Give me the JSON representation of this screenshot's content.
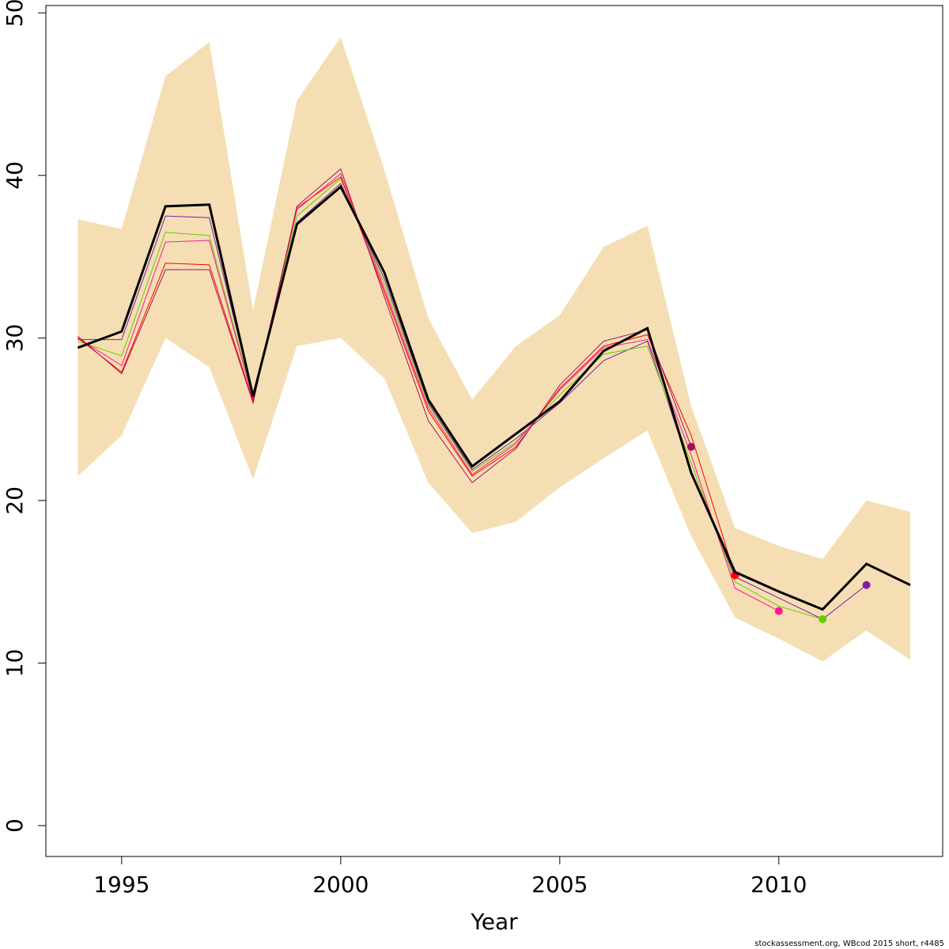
{
  "chart_data": {
    "type": "line",
    "x_label": "Year",
    "footnote": "stockassessment.org, WBcod 2015 short, r4485",
    "x": [
      1994,
      1995,
      1996,
      1997,
      1998,
      1999,
      2000,
      2001,
      2002,
      2003,
      2004,
      2005,
      2006,
      2007,
      2008,
      2009,
      2010,
      2011,
      2012,
      2013
    ],
    "xlim": [
      1993.27,
      2013.74
    ],
    "xticks": [
      1995,
      2000,
      2005,
      2010
    ],
    "ylim": [
      -1.9,
      50.45
    ],
    "yticks": [
      0,
      10,
      20,
      30,
      40,
      50
    ],
    "band": {
      "color": "#f5deb3",
      "upper": [
        37.3,
        36.7,
        46.1,
        48.2,
        31.7,
        44.6,
        48.5,
        40.3,
        31.2,
        26.2,
        29.5,
        31.4,
        35.6,
        36.9,
        25.8,
        18.3,
        17.2,
        16.4,
        20.0,
        19.3
      ],
      "lower": [
        21.5,
        24.0,
        30.0,
        28.2,
        21.3,
        29.5,
        30.0,
        27.5,
        21.1,
        18.0,
        18.7,
        20.8,
        22.6,
        24.3,
        17.8,
        12.8,
        11.5,
        10.1,
        12.0,
        10.2
      ]
    },
    "series": [
      {
        "color": "#7b1fa2",
        "values": [
          29.9,
          29.9,
          37.5,
          37.4,
          26.4,
          37.1,
          39.5,
          33.6,
          26.0,
          21.9,
          23.8,
          26.0,
          28.6,
          29.8,
          21.8,
          15.3,
          14.0,
          12.7,
          14.8,
          null
        ]
      },
      {
        "color": "#66cc00",
        "values": [
          29.8,
          28.9,
          36.5,
          36.3,
          26.3,
          37.5,
          39.8,
          33.3,
          25.9,
          21.8,
          23.6,
          26.5,
          29.0,
          29.5,
          22.3,
          15.0,
          13.5,
          12.7,
          null,
          null
        ]
      },
      {
        "color": "#ff1493",
        "values": [
          30.0,
          28.3,
          35.9,
          36.0,
          26.2,
          37.9,
          40.1,
          33.0,
          25.7,
          21.6,
          23.5,
          26.8,
          29.4,
          29.9,
          22.8,
          14.6,
          13.2,
          null,
          null,
          null
        ]
      },
      {
        "color": "#ff0000",
        "values": [
          30.0,
          27.9,
          34.6,
          34.5,
          26.1,
          38.0,
          39.9,
          32.8,
          25.5,
          21.5,
          23.3,
          26.9,
          29.5,
          30.2,
          24.0,
          15.4,
          null,
          null,
          null,
          null
        ]
      },
      {
        "color": "#a3105c",
        "values": [
          30.1,
          27.8,
          34.2,
          34.2,
          26.0,
          38.1,
          40.4,
          32.5,
          24.9,
          21.1,
          23.2,
          27.1,
          29.8,
          30.5,
          23.3,
          null,
          null,
          null,
          null,
          null
        ]
      },
      {
        "color": "#000000",
        "values": [
          29.4,
          30.4,
          38.1,
          38.2,
          26.4,
          37.0,
          39.3,
          34.0,
          26.2,
          22.1,
          24.1,
          26.1,
          29.2,
          30.6,
          21.7,
          15.6,
          14.4,
          13.3,
          16.1,
          14.8
        ]
      }
    ]
  }
}
